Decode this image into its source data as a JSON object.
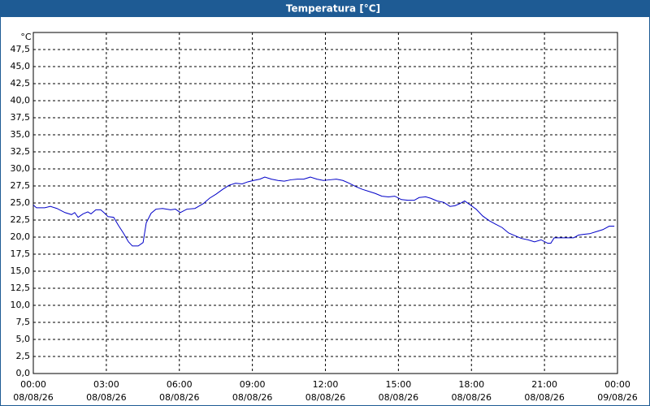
{
  "chart_data": {
    "type": "line",
    "title": "Temperatura [°C]",
    "y_label": "°C",
    "x": [
      0,
      0.13,
      0.47,
      0.7,
      0.97,
      1.3,
      1.57,
      1.7,
      1.84,
      2.04,
      2.24,
      2.37,
      2.57,
      2.77,
      2.9,
      3.07,
      3.3,
      3.5,
      3.7,
      3.91,
      4.07,
      4.31,
      4.51,
      4.64,
      4.84,
      5.04,
      5.31,
      5.64,
      5.84,
      6.04,
      6.31,
      6.64,
      6.98,
      7.24,
      7.51,
      7.78,
      8.04,
      8.31,
      8.58,
      8.81,
      9.05,
      9.31,
      9.51,
      9.78,
      10.05,
      10.31,
      10.58,
      10.85,
      11.11,
      11.38,
      11.65,
      11.92,
      12.18,
      12.45,
      12.72,
      12.98,
      13.25,
      13.52,
      13.79,
      14.05,
      14.32,
      14.59,
      14.85,
      15.12,
      15.39,
      15.65,
      15.85,
      16.12,
      16.32,
      16.59,
      16.86,
      17.12,
      17.32,
      17.52,
      17.72,
      17.92,
      18.19,
      18.46,
      18.73,
      18.99,
      19.26,
      19.53,
      19.79,
      20.06,
      20.33,
      20.59,
      20.86,
      21.13,
      21.26,
      21.4,
      21.66,
      21.93,
      22.2,
      22.4,
      22.6,
      22.86,
      23.13,
      23.4,
      23.66,
      23.87
    ],
    "series": [
      {
        "name": "Temperatura",
        "color": "#0000c8",
        "values": [
          24.7,
          24.3,
          24.3,
          24.5,
          24.2,
          23.6,
          23.3,
          23.6,
          22.9,
          23.4,
          23.7,
          23.4,
          24.0,
          24.0,
          23.6,
          23.0,
          22.9,
          21.7,
          20.6,
          19.3,
          18.7,
          18.7,
          19.2,
          22.1,
          23.5,
          24.1,
          24.2,
          24.0,
          24.1,
          23.6,
          24.1,
          24.2,
          24.9,
          25.7,
          26.3,
          27.0,
          27.6,
          27.9,
          27.8,
          28.1,
          28.3,
          28.5,
          28.8,
          28.5,
          28.3,
          28.2,
          28.4,
          28.5,
          28.5,
          28.8,
          28.5,
          28.3,
          28.4,
          28.5,
          28.3,
          27.9,
          27.4,
          27.0,
          26.7,
          26.4,
          26.0,
          25.9,
          26.0,
          25.5,
          25.4,
          25.4,
          25.8,
          25.9,
          25.7,
          25.3,
          25.1,
          24.5,
          24.6,
          24.9,
          25.3,
          24.8,
          24.1,
          23.1,
          22.4,
          21.9,
          21.4,
          20.6,
          20.2,
          19.8,
          19.6,
          19.3,
          19.6,
          19.1,
          19.1,
          19.9,
          19.9,
          19.9,
          19.9,
          20.3,
          20.4,
          20.5,
          20.8,
          21.1,
          21.6,
          21.6
        ]
      }
    ],
    "xlim": [
      0,
      24
    ],
    "xticks": [
      {
        "value": 0,
        "label": "00:00",
        "date": "08/08/26"
      },
      {
        "value": 3,
        "label": "03:00",
        "date": "08/08/26"
      },
      {
        "value": 6,
        "label": "06:00",
        "date": "08/08/26"
      },
      {
        "value": 9,
        "label": "09:00",
        "date": "08/08/26"
      },
      {
        "value": 12,
        "label": "12:00",
        "date": "08/08/26"
      },
      {
        "value": 15,
        "label": "15:00",
        "date": "08/08/26"
      },
      {
        "value": 18,
        "label": "18:00",
        "date": "08/08/26"
      },
      {
        "value": 21,
        "label": "21:00",
        "date": "08/08/26"
      },
      {
        "value": 24,
        "label": "00:00",
        "date": "09/08/26"
      }
    ],
    "ylim": [
      0,
      50
    ],
    "yticks": [
      {
        "value": 0,
        "label": "0,0"
      },
      {
        "value": 2.5,
        "label": "2,5"
      },
      {
        "value": 5,
        "label": "5,0"
      },
      {
        "value": 7.5,
        "label": "7,5"
      },
      {
        "value": 10,
        "label": "10,0"
      },
      {
        "value": 12.5,
        "label": "12,5"
      },
      {
        "value": 15,
        "label": "15,0"
      },
      {
        "value": 17.5,
        "label": "17,5"
      },
      {
        "value": 20,
        "label": "20,0"
      },
      {
        "value": 22.5,
        "label": "22,5"
      },
      {
        "value": 25,
        "label": "25,0"
      },
      {
        "value": 27.5,
        "label": "27,5"
      },
      {
        "value": 30,
        "label": "30,0"
      },
      {
        "value": 32.5,
        "label": "32,5"
      },
      {
        "value": 35,
        "label": "35,0"
      },
      {
        "value": 37.5,
        "label": "37,5"
      },
      {
        "value": 40,
        "label": "40,0"
      },
      {
        "value": 42.5,
        "label": "42,5"
      },
      {
        "value": 45,
        "label": "45,0"
      },
      {
        "value": 47.5,
        "label": "47,5"
      }
    ],
    "grid": true
  }
}
